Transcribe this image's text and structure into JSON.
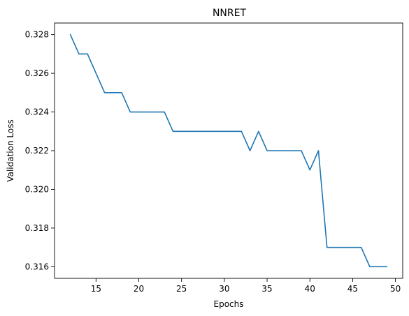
{
  "chart_data": {
    "type": "line",
    "title": "NNRET",
    "xlabel": "Epochs",
    "ylabel": "Validation Loss",
    "xlim": [
      10.15,
      50.85
    ],
    "ylim": [
      0.3154,
      0.3286
    ],
    "xticks": [
      15,
      20,
      25,
      30,
      35,
      40,
      45,
      50
    ],
    "xtick_labels": [
      "15",
      "20",
      "25",
      "30",
      "35",
      "40",
      "45",
      "50"
    ],
    "yticks": [
      0.316,
      0.318,
      0.32,
      0.322,
      0.324,
      0.326,
      0.328
    ],
    "ytick_labels": [
      "0.316",
      "0.318",
      "0.320",
      "0.322",
      "0.324",
      "0.326",
      "0.328"
    ],
    "grid": false,
    "series": [
      {
        "color": "#1f77b4",
        "x": [
          12,
          13,
          14,
          15,
          16,
          17,
          18,
          19,
          20,
          21,
          22,
          23,
          24,
          25,
          26,
          27,
          28,
          29,
          30,
          31,
          32,
          33,
          34,
          35,
          36,
          37,
          38,
          39,
          40,
          41,
          42,
          43,
          44,
          45,
          46,
          47,
          48,
          49
        ],
        "y": [
          0.328,
          0.327,
          0.327,
          0.326,
          0.325,
          0.325,
          0.325,
          0.324,
          0.324,
          0.324,
          0.324,
          0.324,
          0.323,
          0.323,
          0.323,
          0.323,
          0.323,
          0.323,
          0.323,
          0.323,
          0.323,
          0.322,
          0.323,
          0.322,
          0.322,
          0.322,
          0.322,
          0.322,
          0.321,
          0.322,
          0.317,
          0.317,
          0.317,
          0.317,
          0.317,
          0.316,
          0.316,
          0.316
        ]
      }
    ]
  }
}
